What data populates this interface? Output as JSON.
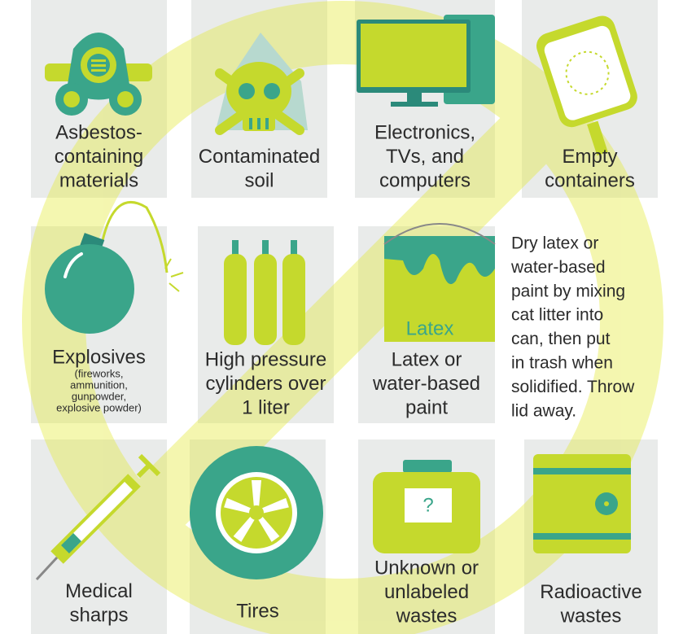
{
  "items": [
    {
      "label": [
        "Asbestos-",
        "containing",
        "materials"
      ]
    },
    {
      "label": [
        "Contaminated",
        "soil"
      ]
    },
    {
      "label": [
        "Electronics,",
        "TVs, and",
        "computers"
      ]
    },
    {
      "label": [
        "Empty",
        "containers"
      ]
    },
    {
      "label": [
        "Explosives"
      ],
      "sub": [
        "(fireworks,",
        "ammunition,",
        "gunpowder,",
        "explosive powder)"
      ]
    },
    {
      "label": [
        "High pressure",
        "cylinders over",
        "1 liter"
      ]
    },
    {
      "label": [
        "Latex or",
        "water-based",
        "paint"
      ],
      "can_text": "Latex"
    },
    {
      "label": [
        "Medical",
        "sharps"
      ]
    },
    {
      "label": [
        "Tires"
      ]
    },
    {
      "label": [
        "Unknown or",
        "unlabeled",
        "wastes"
      ],
      "mark": "?"
    },
    {
      "label": [
        "Radioactive",
        "wastes"
      ]
    }
  ],
  "note": [
    "Dry latex or",
    "water-based",
    "paint by mixing",
    "cat litter into",
    "can, then put",
    "in trash when",
    "solidified. Throw",
    "lid away."
  ]
}
